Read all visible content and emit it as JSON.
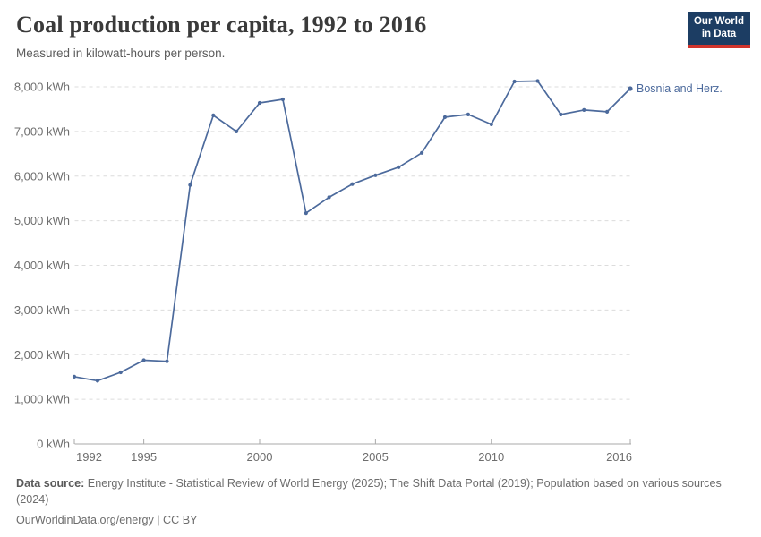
{
  "header": {
    "title": "Coal production per capita, 1992 to 2016",
    "subtitle": "Measured in kilowatt-hours per person.",
    "logo": {
      "line1": "Our World",
      "line2": "in Data",
      "bg_color": "#1c3d63",
      "bar_color": "#d1342c"
    }
  },
  "chart_data": {
    "type": "line",
    "title": "Coal production per capita, 1992 to 2016",
    "subtitle": "Measured in kilowatt-hours per person.",
    "xlabel": "",
    "ylabel": "kWh per person",
    "x": [
      1992,
      1993,
      1994,
      1995,
      1996,
      1997,
      1998,
      1999,
      2000,
      2001,
      2002,
      2003,
      2004,
      2005,
      2006,
      2007,
      2008,
      2009,
      2010,
      2011,
      2012,
      2013,
      2014,
      2015,
      2016
    ],
    "series": [
      {
        "name": "Bosnia and Herz.",
        "color": "#4C6A9C",
        "values": [
          1505,
          1415,
          1605,
          1875,
          1850,
          5800,
          7360,
          7000,
          7640,
          7720,
          5170,
          5525,
          5820,
          6020,
          6200,
          6520,
          7320,
          7380,
          7160,
          8120,
          8130,
          7380,
          7480,
          7440,
          7960
        ]
      }
    ],
    "xlim": [
      1992,
      2016
    ],
    "ylim": [
      0,
      8200
    ],
    "xticks": {
      "values": [
        1992,
        1995,
        2000,
        2005,
        2010,
        2016
      ],
      "labels": [
        "1992",
        "1995",
        "2000",
        "2005",
        "2010",
        "2016"
      ]
    },
    "yticks": {
      "values": [
        0,
        1000,
        2000,
        3000,
        4000,
        5000,
        6000,
        7000,
        8000
      ],
      "labels": [
        "0 kWh",
        "1,000 kWh",
        "2,000 kWh",
        "3,000 kWh",
        "4,000 kWh",
        "5,000 kWh",
        "6,000 kWh",
        "7,000 kWh",
        "8,000 kWh"
      ]
    },
    "grid": "horizontal-dashed",
    "legend": "end-of-line-label"
  },
  "footer": {
    "source_prefix": "Data source:",
    "source_text": " Energy Institute - Statistical Review of World Energy (2025); The Shift Data Portal (2019); Population based on various sources (2024)",
    "link": "OurWorldinData.org/energy",
    "separator": " | ",
    "license": "CC BY"
  },
  "colors": {
    "line": "#4C6A9C",
    "grid": "#dcdcdc",
    "axis": "#a9a9a9",
    "tick_label": "#6e6e6e",
    "title": "#3a3a3a",
    "subtitle": "#5c5c5c",
    "footer": "#6d6d6d"
  }
}
